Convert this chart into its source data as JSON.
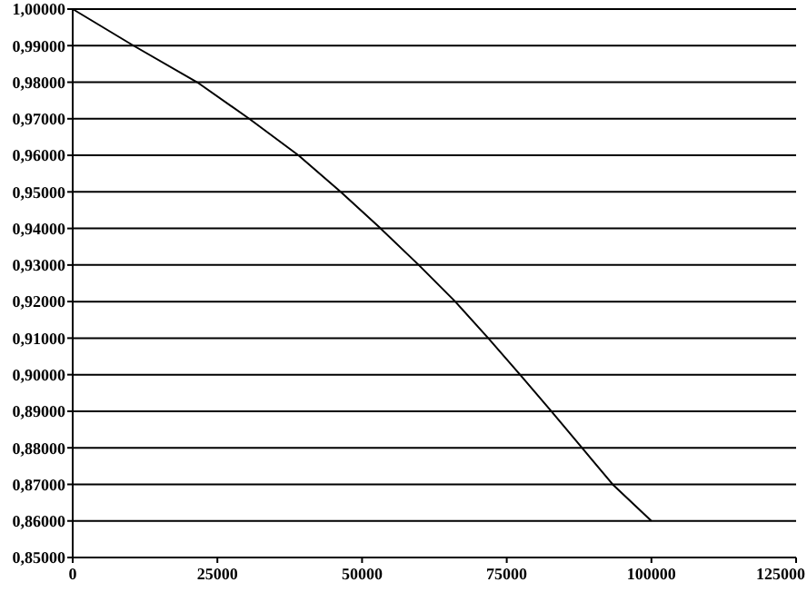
{
  "chart_data": {
    "type": "line",
    "x": [
      0,
      10500,
      21500,
      30500,
      39000,
      46300,
      53200,
      59800,
      66100,
      71800,
      77300,
      82700,
      88000,
      93300,
      100000
    ],
    "series": [
      {
        "color": "#000000",
        "values": [
          1.0,
          0.99,
          0.98,
          0.97,
          0.96,
          0.95,
          0.94,
          0.93,
          0.92,
          0.91,
          0.9,
          0.89,
          0.88,
          0.87,
          0.86
        ]
      }
    ],
    "xlim": [
      0,
      125000
    ],
    "xticks": [
      0,
      25000,
      50000,
      75000,
      100000,
      125000
    ],
    "ylim": [
      0.85,
      1.0
    ],
    "yticks": [
      {
        "value": 0.85,
        "label": "0,85000"
      },
      {
        "value": 0.86,
        "label": "0,86000"
      },
      {
        "value": 0.87,
        "label": "0,87000"
      },
      {
        "value": 0.88,
        "label": "0,88000"
      },
      {
        "value": 0.89,
        "label": "0,89000"
      },
      {
        "value": 0.9,
        "label": "0,90000"
      },
      {
        "value": 0.91,
        "label": "0,91000"
      },
      {
        "value": 0.92,
        "label": "0,92000"
      },
      {
        "value": 0.93,
        "label": "0,93000"
      },
      {
        "value": 0.94,
        "label": "0,94000"
      },
      {
        "value": 0.95,
        "label": "0,95000"
      },
      {
        "value": 0.96,
        "label": "0,96000"
      },
      {
        "value": 0.97,
        "label": "0,97000"
      },
      {
        "value": 0.98,
        "label": "0,98000"
      },
      {
        "value": 0.99,
        "label": "0,99000"
      },
      {
        "value": 1.0,
        "label": "1,00000"
      }
    ],
    "grid": "y",
    "marker": "none",
    "line_style": "solid"
  }
}
